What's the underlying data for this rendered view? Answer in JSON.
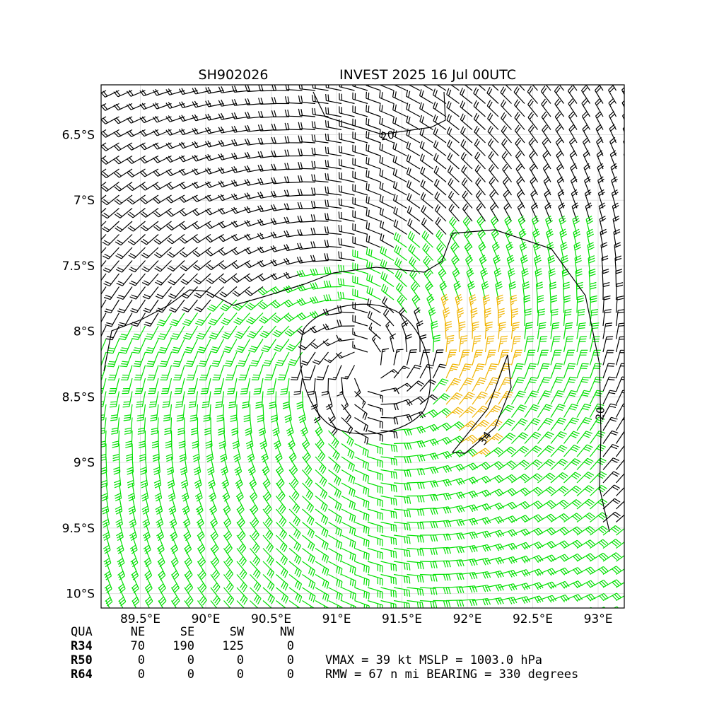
{
  "header": {
    "id": "SH902026",
    "title": "INVEST 2025 16 Jul 00UTC"
  },
  "map": {
    "xlim": [
      89.2,
      93.2
    ],
    "ylim": [
      -10.11,
      -6.12
    ],
    "xticks": [
      {
        "value": 89.5,
        "label": "89.5°E"
      },
      {
        "value": 90,
        "label": "90°E"
      },
      {
        "value": 90.5,
        "label": "90.5°E"
      },
      {
        "value": 91,
        "label": "91°E"
      },
      {
        "value": 91.5,
        "label": "91.5°E"
      },
      {
        "value": 92,
        "label": "92°E"
      },
      {
        "value": 92.5,
        "label": "92.5°E"
      },
      {
        "value": 93,
        "label": "93°E"
      }
    ],
    "yticks": [
      {
        "value": -6.5,
        "label": "6.5°S"
      },
      {
        "value": -7,
        "label": "7°S"
      },
      {
        "value": -7.5,
        "label": "7.5°S"
      },
      {
        "value": -8,
        "label": "8°S"
      },
      {
        "value": -8.5,
        "label": "8.5°S"
      },
      {
        "value": -9,
        "label": "9°S"
      },
      {
        "value": -9.5,
        "label": "9.5°S"
      },
      {
        "value": -10,
        "label": "10°S"
      }
    ],
    "grid": true,
    "contour_labels": [
      20,
      20,
      34
    ]
  },
  "table": {
    "columns": [
      "QUA",
      "NE",
      "SE",
      "SW",
      "NW"
    ],
    "rows": [
      {
        "label": "R34",
        "values": [
          70,
          190,
          125,
          0
        ]
      },
      {
        "label": "R50",
        "values": [
          0,
          0,
          0,
          0
        ]
      },
      {
        "label": "R64",
        "values": [
          0,
          0,
          0,
          0
        ]
      }
    ]
  },
  "info": [
    "VMAX =  39 kt MSLP = 1003.0 hPa",
    "RMW =  67 n mi BEARING = 330 degrees"
  ]
}
